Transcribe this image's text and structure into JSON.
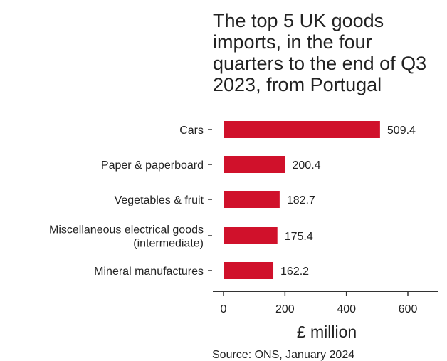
{
  "chart_data": {
    "type": "bar",
    "orientation": "horizontal",
    "title_lines": [
      "The top 5 UK goods",
      "imports, in the four",
      "quarters to the end of Q3",
      "2023, from Portugal"
    ],
    "categories": [
      [
        "Cars"
      ],
      [
        "Paper & paperboard"
      ],
      [
        "Vegetables & fruit"
      ],
      [
        "Miscellaneous electrical goods",
        "(intermediate)"
      ],
      [
        "Mineral manufactures"
      ]
    ],
    "values": [
      509.4,
      200.4,
      182.7,
      175.4,
      162.2
    ],
    "value_labels": [
      "509.4",
      "200.4",
      "182.7",
      "175.4",
      "162.2"
    ],
    "xlabel": "£ million",
    "xlim": [
      0,
      650
    ],
    "x_ticks": [
      0,
      200,
      400,
      600
    ],
    "bar_color": "#d0112b",
    "grid": false,
    "legend": "none",
    "source": "Source: ONS, January 2024"
  }
}
